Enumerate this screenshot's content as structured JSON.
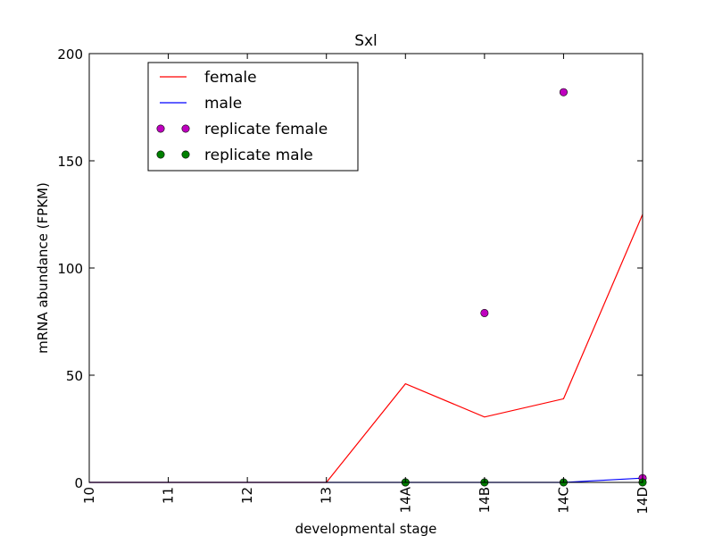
{
  "chart_data": {
    "type": "line",
    "title": "Sxl",
    "xlabel": "developmental stage",
    "ylabel": "mRNA abundance (FPKM)",
    "categories": [
      "10",
      "11",
      "12",
      "13",
      "14A",
      "14B",
      "14C",
      "14D"
    ],
    "ylim": [
      0,
      200
    ],
    "yticks": [
      0,
      50,
      100,
      150,
      200
    ],
    "grid": false,
    "legend_position": "upper-left",
    "series": [
      {
        "name": "female",
        "kind": "line",
        "color": "#ff0000",
        "values": [
          0,
          0,
          0,
          0,
          46,
          30.5,
          39,
          125
        ]
      },
      {
        "name": "male",
        "kind": "line",
        "color": "#0000ff",
        "values": [
          0,
          0,
          0,
          0,
          0,
          0,
          0,
          2
        ]
      },
      {
        "name": "replicate female",
        "kind": "marker",
        "color": "#bf00bf",
        "points": [
          {
            "x": "14A",
            "y": 0
          },
          {
            "x": "14B",
            "y": 79
          },
          {
            "x": "14C",
            "y": 182
          },
          {
            "x": "14D",
            "y": 2
          }
        ]
      },
      {
        "name": "replicate male",
        "kind": "marker",
        "color": "#008000",
        "points": [
          {
            "x": "14A",
            "y": 0
          },
          {
            "x": "14B",
            "y": 0
          },
          {
            "x": "14C",
            "y": 0
          },
          {
            "x": "14D",
            "y": 0
          }
        ]
      }
    ]
  }
}
